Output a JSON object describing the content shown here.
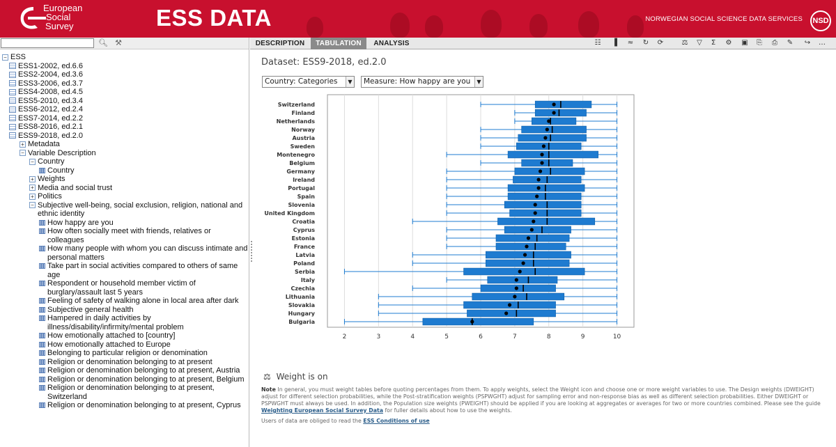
{
  "header": {
    "logo_lines": [
      "European",
      "Social",
      "Survey"
    ],
    "brand_title": "ESS DATA",
    "org_name": "NORWEGIAN SOCIAL SCIENCE DATA SERVICES",
    "org_logo": "NSD",
    "bg_color": "#c8102e"
  },
  "search": {
    "value": "",
    "placeholder": ""
  },
  "tree": {
    "root": "ESS",
    "rounds": [
      "ESS1-2002, ed.6.6",
      "ESS2-2004, ed.3.6",
      "ESS3-2006, ed.3.7",
      "ESS4-2008, ed.4.5",
      "ESS5-2010, ed.3.4",
      "ESS6-2012, ed.2.4",
      "ESS7-2014, ed.2.2",
      "ESS8-2016, ed.2.1",
      "ESS9-2018, ed.2.0"
    ],
    "metadata": "Metadata",
    "variable_description": "Variable Description",
    "country_folder": "Country",
    "country_var": "Country",
    "weights": "Weights",
    "media": "Media and social trust",
    "politics": "Politics",
    "subjective": "Subjective well-being, social exclusion, religion, national and ethnic identity",
    "variables": [
      "How happy are you",
      "How often socially meet with friends, relatives or colleagues",
      "How many people with whom you can discuss intimate and personal matters",
      "Take part in social activities compared to others of same age",
      "Respondent or household member victim of burglary/assault last 5 years",
      "Feeling of safety of walking alone in local area after dark",
      "Subjective general health",
      "Hampered in daily activities by illness/disability/infirmity/mental problem",
      "How emotionally attached to [country]",
      "How emotionally attached to Europe",
      "Belonging to particular religion or denomination",
      "Religion or denomination belonging to at present",
      "Religion or denomination belonging to at present, Austria",
      "Religion or denomination belonging to at present, Belgium",
      "Religion or denomination belonging to at present, Switzerland",
      "Religion or denomination belonging to at present, Cyprus"
    ]
  },
  "tabs": {
    "description": "DESCRIPTION",
    "tabulation": "TABULATION",
    "analysis": "ANALYSIS"
  },
  "dataset_title": "Dataset: ESS9-2018, ed.2.0",
  "selects": {
    "row": "Country: Categories",
    "measure": "Measure: How happy are you"
  },
  "chart_data": {
    "type": "boxplot",
    "orientation": "horizontal",
    "xlim": [
      1.5,
      10.5
    ],
    "xticks": [
      "2",
      "3",
      "4",
      "5",
      "6",
      "7",
      "8",
      "9",
      "10"
    ],
    "box_color": "#1e7bd0",
    "series": [
      {
        "name": "Switzerland",
        "min": 6,
        "q1": 7.6,
        "median": 8.35,
        "q3": 9.25,
        "max": 10,
        "mean": 8.15
      },
      {
        "name": "Finland",
        "min": 7,
        "q1": 7.6,
        "median": 8.3,
        "q3": 9.1,
        "max": 10,
        "mean": 8.15
      },
      {
        "name": "Netherlands",
        "min": 7,
        "q1": 7.5,
        "median": 8.05,
        "q3": 8.8,
        "max": 10,
        "mean": 8.0
      },
      {
        "name": "Norway",
        "min": 6,
        "q1": 7.2,
        "median": 8.1,
        "q3": 9.1,
        "max": 10,
        "mean": 7.95
      },
      {
        "name": "Austria",
        "min": 6,
        "q1": 7.1,
        "median": 8.05,
        "q3": 9.1,
        "max": 10,
        "mean": 7.9
      },
      {
        "name": "Sweden",
        "min": 6,
        "q1": 7.05,
        "median": 8.0,
        "q3": 8.95,
        "max": 10,
        "mean": 7.85
      },
      {
        "name": "Montenegro",
        "min": 5,
        "q1": 6.8,
        "median": 8.0,
        "q3": 9.45,
        "max": 10,
        "mean": 7.8
      },
      {
        "name": "Belgium",
        "min": 6,
        "q1": 7.2,
        "median": 8.0,
        "q3": 8.7,
        "max": 10,
        "mean": 7.8
      },
      {
        "name": "Germany",
        "min": 5,
        "q1": 7.0,
        "median": 8.05,
        "q3": 9.05,
        "max": 10,
        "mean": 7.75
      },
      {
        "name": "Ireland",
        "min": 5,
        "q1": 6.95,
        "median": 7.95,
        "q3": 8.95,
        "max": 10,
        "mean": 7.7
      },
      {
        "name": "Portugal",
        "min": 5,
        "q1": 6.8,
        "median": 7.9,
        "q3": 9.05,
        "max": 10,
        "mean": 7.7
      },
      {
        "name": "Spain",
        "min": 5,
        "q1": 6.8,
        "median": 7.9,
        "q3": 8.95,
        "max": 10,
        "mean": 7.65
      },
      {
        "name": "Slovenia",
        "min": 5,
        "q1": 6.7,
        "median": 7.95,
        "q3": 8.95,
        "max": 10,
        "mean": 7.6
      },
      {
        "name": "United Kingdom",
        "min": 5,
        "q1": 6.85,
        "median": 7.95,
        "q3": 8.95,
        "max": 10,
        "mean": 7.6
      },
      {
        "name": "Croatia",
        "min": 4,
        "q1": 6.5,
        "median": 7.95,
        "q3": 9.35,
        "max": 10,
        "mean": 7.55
      },
      {
        "name": "Cyprus",
        "min": 5,
        "q1": 6.7,
        "median": 7.8,
        "q3": 8.65,
        "max": 10,
        "mean": 7.5
      },
      {
        "name": "Estonia",
        "min": 5,
        "q1": 6.45,
        "median": 7.65,
        "q3": 8.6,
        "max": 10,
        "mean": 7.4
      },
      {
        "name": "France",
        "min": 5,
        "q1": 6.45,
        "median": 7.6,
        "q3": 8.5,
        "max": 10,
        "mean": 7.35
      },
      {
        "name": "Latvia",
        "min": 4,
        "q1": 6.15,
        "median": 7.55,
        "q3": 8.65,
        "max": 10,
        "mean": 7.3
      },
      {
        "name": "Poland",
        "min": 4,
        "q1": 6.15,
        "median": 7.55,
        "q3": 8.6,
        "max": 10,
        "mean": 7.25
      },
      {
        "name": "Serbia",
        "min": 2,
        "q1": 5.5,
        "median": 7.6,
        "q3": 9.05,
        "max": 10,
        "mean": 7.15
      },
      {
        "name": "Italy",
        "min": 5,
        "q1": 6.2,
        "median": 7.4,
        "q3": 8.25,
        "max": 10,
        "mean": 7.05
      },
      {
        "name": "Czechia",
        "min": 4,
        "q1": 6.0,
        "median": 7.25,
        "q3": 8.2,
        "max": 10,
        "mean": 7.05
      },
      {
        "name": "Lithuania",
        "min": 3,
        "q1": 5.75,
        "median": 7.35,
        "q3": 8.45,
        "max": 10,
        "mean": 7.0
      },
      {
        "name": "Slovakia",
        "min": 3,
        "q1": 5.5,
        "median": 7.1,
        "q3": 8.2,
        "max": 10,
        "mean": 6.85
      },
      {
        "name": "Hungary",
        "min": 3,
        "q1": 5.6,
        "median": 7.05,
        "q3": 8.2,
        "max": 10,
        "mean": 6.75
      },
      {
        "name": "Bulgaria",
        "min": 2,
        "q1": 4.3,
        "median": 5.75,
        "q3": 7.55,
        "max": 10,
        "mean": 5.75
      }
    ]
  },
  "weight_status": "Weight is on",
  "note": {
    "label": "Note",
    "text": "In general, you must weight tables before quoting percentages from them. To apply weights, select the Weight icon and choose one or more weight variables to use. The Design weights (DWEIGHT) adjust for different selection probabilities, while the Post-stratification weights (PSPWGHT) adjust for sampling error and non-response bias as well as different selection probabilities. Either DWEIGHT or PSPWGHT must always be used. In addition, the Population size weights (PWEIGHT) should be applied if you are looking at aggregates or averages for two or more countries combined. Please see the guide",
    "link": "Weighting European Social Survey Data",
    "after": "for fuller details about how to use the weights."
  },
  "users": {
    "text": "Users of data are obliged to read the",
    "link": "ESS Conditions of use"
  }
}
